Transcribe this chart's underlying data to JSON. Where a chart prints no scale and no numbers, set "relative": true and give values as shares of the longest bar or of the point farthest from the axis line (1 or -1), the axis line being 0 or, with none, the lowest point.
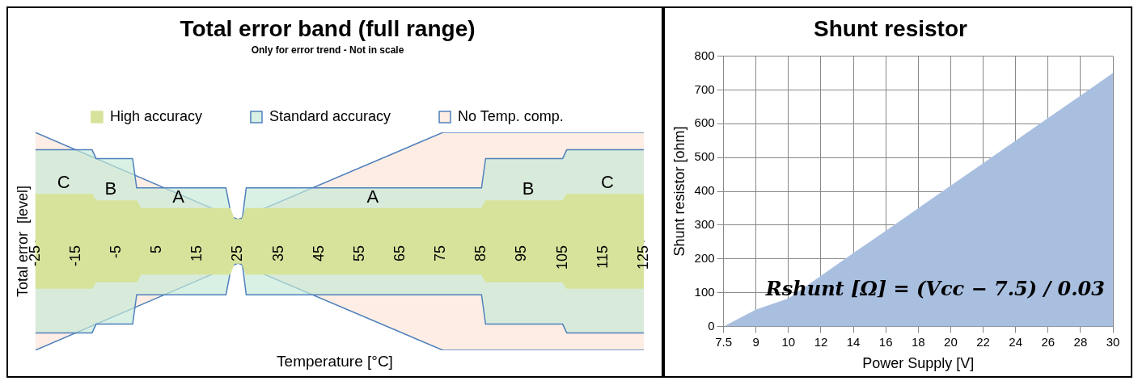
{
  "chart_data": [
    {
      "type": "area",
      "title": "Total error band (full range)",
      "subtitle": "Only for error trend - Not in scale",
      "xlabel": "Temperature [°C]",
      "ylabel": "Total error  [level]",
      "relative": true,
      "legend": "top",
      "xlim": [
        -25,
        125
      ],
      "xticks": [
        -25,
        -15,
        -5,
        5,
        15,
        25,
        35,
        45,
        55,
        65,
        75,
        85,
        95,
        105,
        115,
        125
      ],
      "series": [
        {
          "name": "High accuracy",
          "color": "#d7e39b",
          "x": [
            -25,
            -11,
            -10,
            0,
            1,
            23,
            24,
            26,
            27,
            85,
            86,
            105,
            106,
            125
          ],
          "values": [
            0.43,
            0.43,
            0.37,
            0.37,
            0.3,
            0.3,
            0.2,
            0.2,
            0.3,
            0.3,
            0.37,
            0.37,
            0.43,
            0.43
          ]
        },
        {
          "color": "#d7e39b",
          "x": [
            -25,
            -11,
            -10,
            0,
            1,
            23,
            24,
            26,
            27,
            85,
            86,
            105,
            106,
            125
          ],
          "values": [
            -0.43,
            -0.43,
            -0.37,
            -0.37,
            -0.3,
            -0.3,
            -0.2,
            -0.2,
            -0.3,
            -0.3,
            -0.37,
            -0.37,
            -0.43,
            -0.43
          ]
        },
        {
          "name": "Standard accuracy",
          "color": "#c6ead6",
          "x": [
            -25,
            -11,
            -10,
            -1,
            0,
            22,
            23.5,
            26,
            27,
            85,
            86,
            105,
            106,
            125
          ],
          "values": [
            0.84,
            0.84,
            0.76,
            0.76,
            0.49,
            0.49,
            0.2,
            0.2,
            0.49,
            0.49,
            0.76,
            0.76,
            0.84,
            0.84
          ]
        },
        {
          "color": "#c6ead6",
          "x": [
            -25,
            -11,
            -10,
            -1,
            0,
            22,
            23.5,
            26,
            27,
            85,
            86,
            105,
            106,
            125
          ],
          "values": [
            -0.84,
            -0.84,
            -0.76,
            -0.76,
            -0.49,
            -0.49,
            -0.2,
            -0.2,
            -0.49,
            -0.49,
            -0.76,
            -0.76,
            -0.84,
            -0.84
          ]
        },
        {
          "name": "No Temp. comp.",
          "color": "#fce4d6",
          "x": [
            -25,
            25,
            75.5,
            125
          ],
          "values": [
            1,
            0.2,
            1,
            1
          ]
        },
        {
          "color": "#fce4d6",
          "x": [
            -25,
            25,
            75.5,
            125
          ],
          "values": [
            -1,
            -0.2,
            -1,
            -1
          ]
        }
      ],
      "annotations": [
        {
          "text": "C",
          "x": -18,
          "y": 0.43
        },
        {
          "text": "B",
          "x": -6.4,
          "y": 0.37
        },
        {
          "text": "A",
          "x": 10.3,
          "y": 0.3
        },
        {
          "text": "A",
          "x": 58.2,
          "y": 0.3
        },
        {
          "text": "B",
          "x": 96.5,
          "y": 0.37
        },
        {
          "text": "C",
          "x": 116,
          "y": 0.43
        }
      ]
    },
    {
      "type": "area",
      "title": "Shunt resistor",
      "xlabel": "Power Supply [V]",
      "ylabel": "Shunt resistor [ohm]",
      "grid": true,
      "color": "#a9bfe0",
      "categories": [
        "7.5",
        "9",
        "10",
        "12",
        "14",
        "16",
        "18",
        "20",
        "22",
        "24",
        "26",
        "28",
        "30"
      ],
      "values": [
        0,
        50,
        83,
        150,
        217,
        283,
        350,
        417,
        483,
        550,
        617,
        683,
        750
      ],
      "ylim": [
        0,
        800
      ],
      "yticks": [
        0,
        100,
        200,
        300,
        400,
        500,
        600,
        700,
        800
      ],
      "annotations": [
        "Rshunt [Ω] = (Vcc − 7.5) / 0.03"
      ]
    }
  ]
}
